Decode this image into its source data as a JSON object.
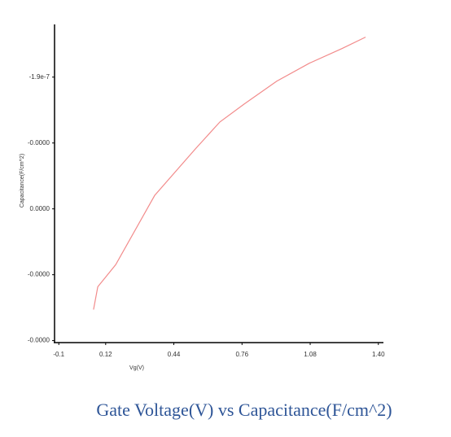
{
  "chart_data": {
    "type": "line",
    "title": "Gate Voltage(V) vs Capacitance(F/cm^2)",
    "x_label": "Vg(V)",
    "y_label": "Capacitance(F/cm^2)",
    "x": [
      0.063,
      0.083,
      0.167,
      0.35,
      0.541,
      0.656,
      0.77,
      0.923,
      1.076,
      1.229,
      1.34
    ],
    "series": [
      {
        "name": "Capacitance",
        "color": "#f28b8b",
        "values": [
          -2.2529e-07,
          -2.2183e-07,
          -2.1848e-07,
          -2.0796e-07,
          -2.009e-07,
          -1.9681e-07,
          -1.9409e-07,
          -1.9062e-07,
          -1.8789e-07,
          -1.8567e-07,
          -1.8393e-07
        ]
      }
    ],
    "xlim": [
      -0.12,
      1.42
    ],
    "xticks": [
      -0.1,
      0.12,
      0.44,
      0.76,
      1.08,
      {
        "value": 1.4,
        "label": "1.40"
      }
    ],
    "ylim": [
      -2.303e-07,
      -1.82e-07
    ],
    "yticks": [
      {
        "value": -1.9e-07,
        "label": "-1.9e-7"
      },
      {
        "value": -2e-07,
        "label": "-0.0000"
      },
      {
        "value": -2.1e-07,
        "label": "0.0000"
      },
      {
        "value": -2.2e-07,
        "label": "-0.0000"
      },
      {
        "value": -2.3e-07,
        "label": "-0.0000"
      }
    ]
  }
}
